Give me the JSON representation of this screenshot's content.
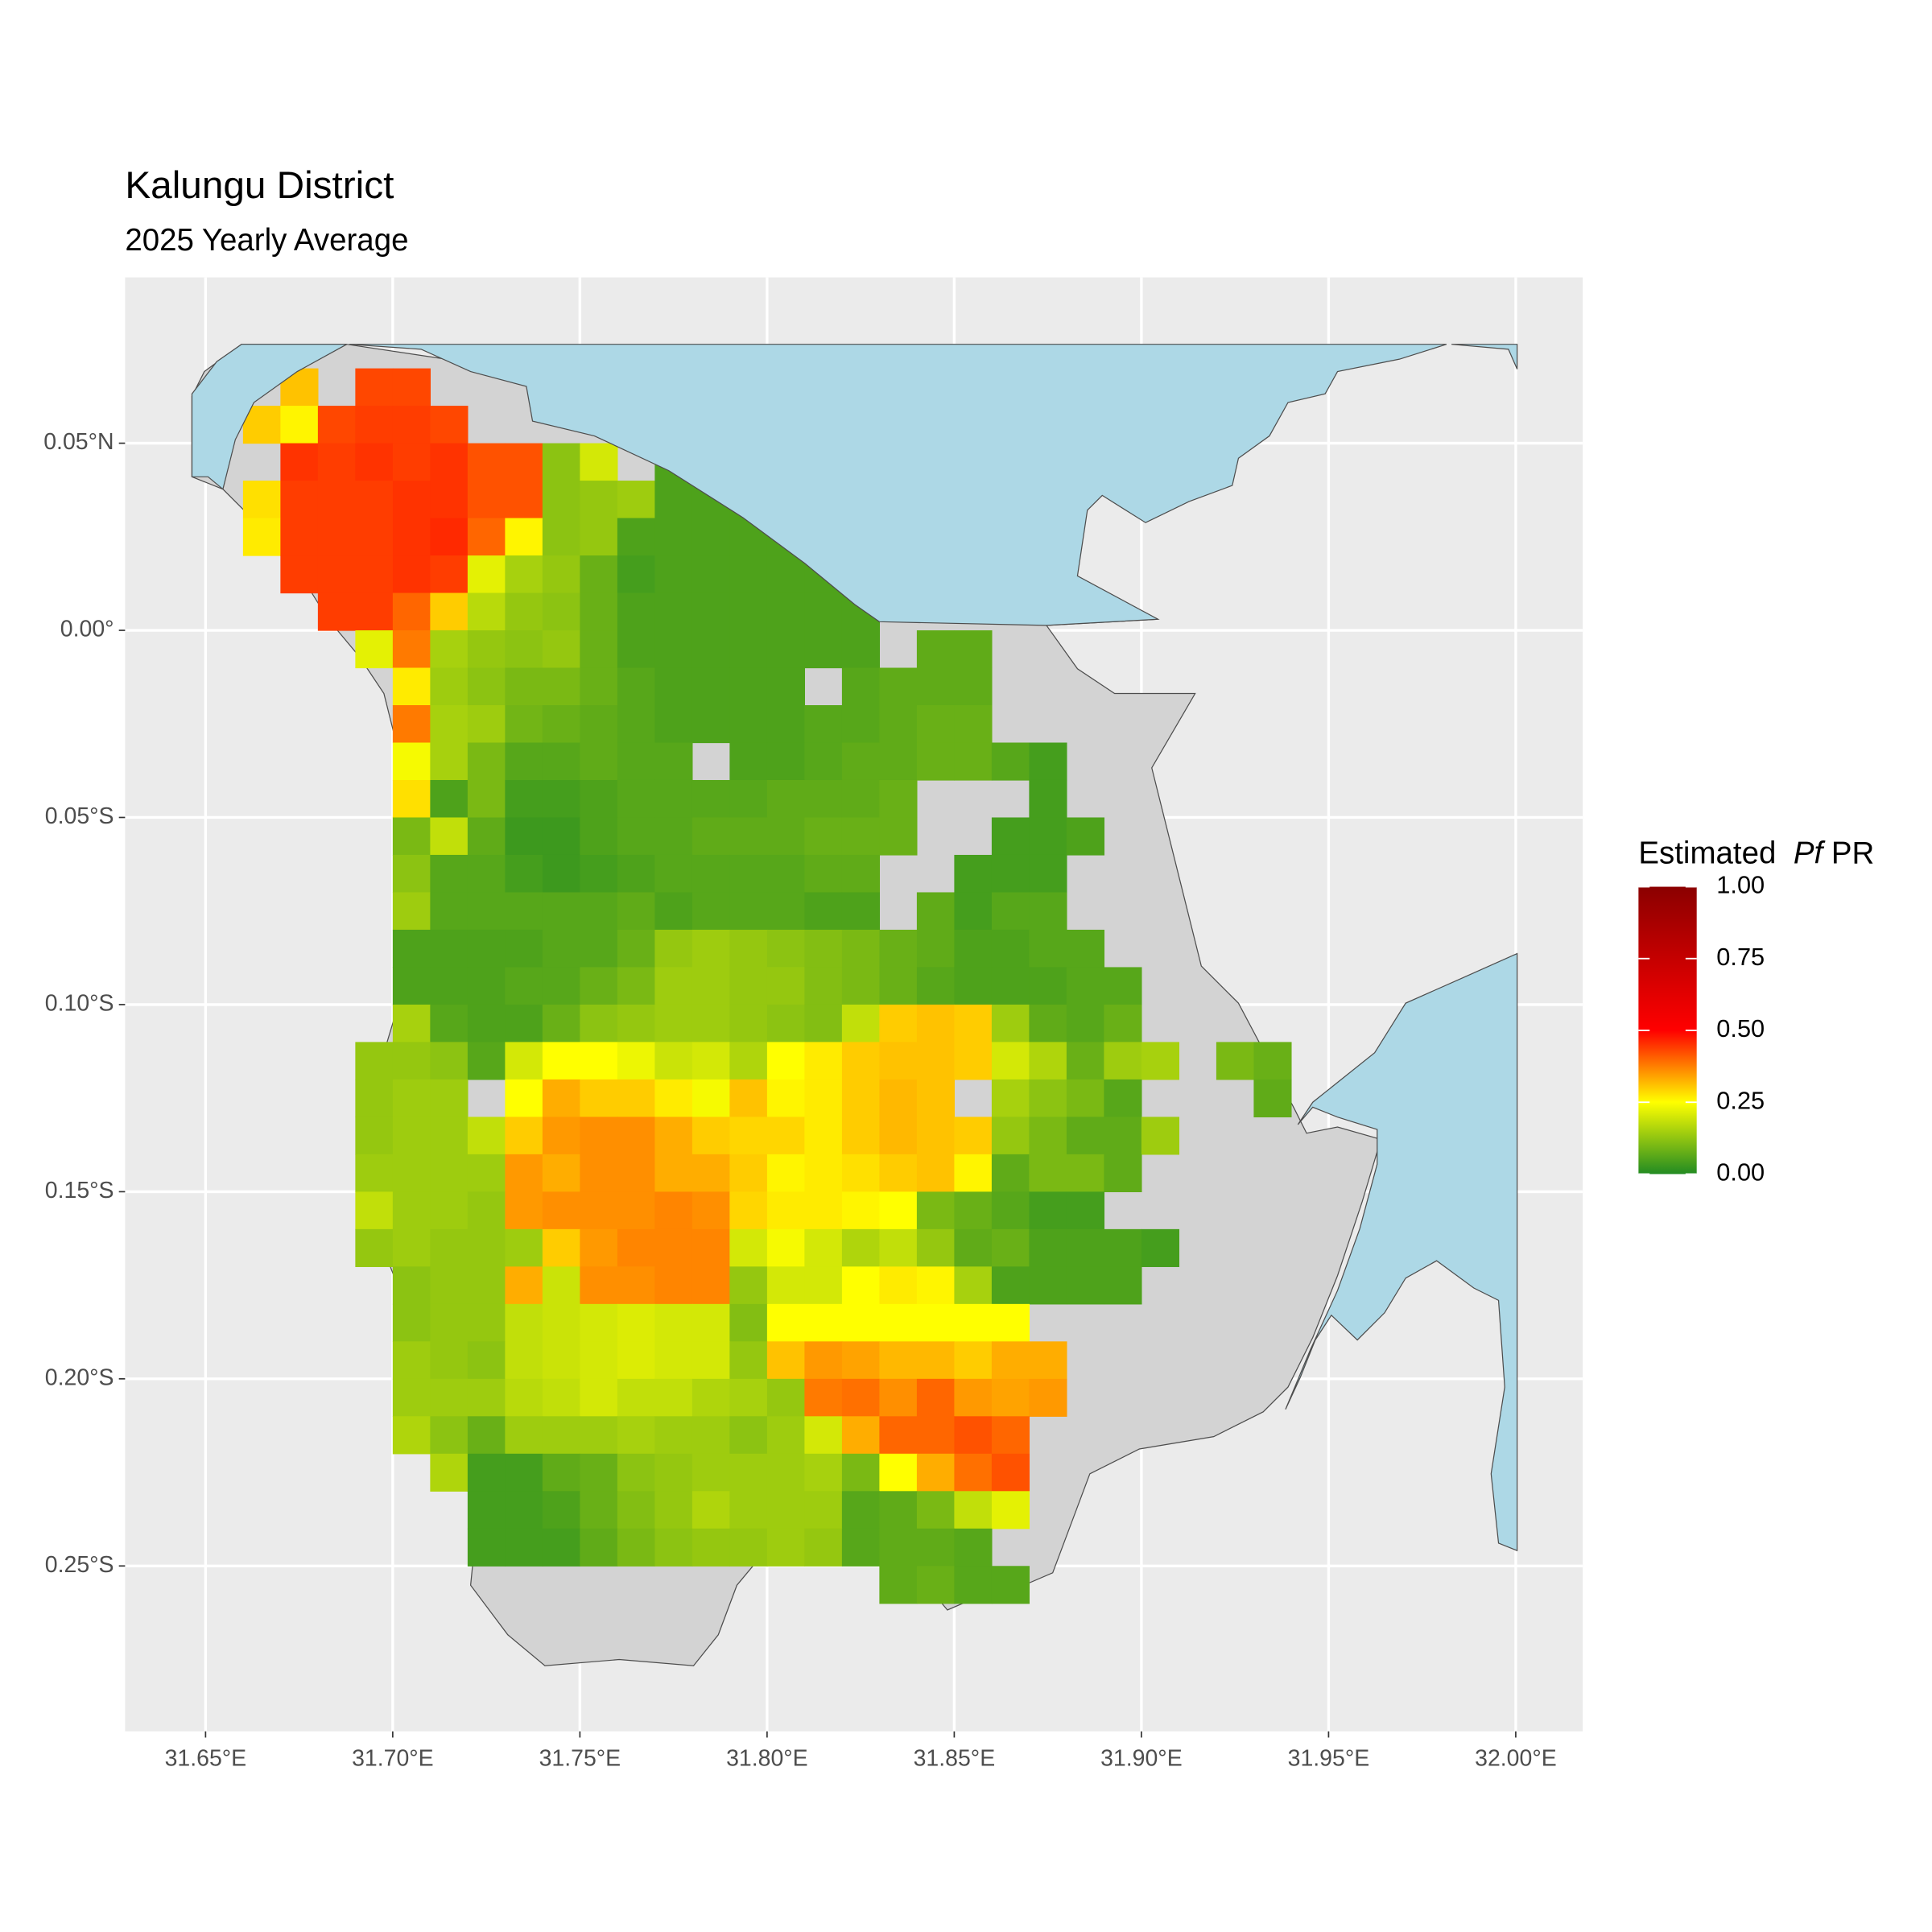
{
  "chart_data": {
    "type": "raster",
    "title": "Kalungu District",
    "subtitle": "2025 Yearly Average",
    "legend_title": [
      "Estimated",
      "Pf",
      "PR"
    ],
    "xlim": [
      31.6285,
      32.0179
    ],
    "ylim": [
      -0.2942,
      0.0943
    ],
    "xticks": [
      {
        "value": 31.65,
        "label": "31.65°E"
      },
      {
        "value": 31.7,
        "label": "31.70°E"
      },
      {
        "value": 31.75,
        "label": "31.75°E"
      },
      {
        "value": 31.8,
        "label": "31.80°E"
      },
      {
        "value": 31.85,
        "label": "31.85°E"
      },
      {
        "value": 31.9,
        "label": "31.90°E"
      },
      {
        "value": 31.95,
        "label": "31.95°E"
      },
      {
        "value": 32.0,
        "label": "32.00°E"
      }
    ],
    "yticks": [
      {
        "value": 0.05,
        "label": "0.05°N"
      },
      {
        "value": 0,
        "label": "0.00°"
      },
      {
        "value": -0.05,
        "label": "0.05°S"
      },
      {
        "value": -0.1,
        "label": "0.10°S"
      },
      {
        "value": -0.15,
        "label": "0.15°S"
      },
      {
        "value": -0.2,
        "label": "0.20°S"
      },
      {
        "value": -0.25,
        "label": "0.25°S"
      }
    ],
    "grid": true,
    "colorbar_lim": [
      0,
      1
    ],
    "colorbar_ticks": [
      {
        "value": 0,
        "label": "0.00"
      },
      {
        "value": 0.25,
        "label": "0.25"
      },
      {
        "value": 0.5,
        "label": "0.50"
      },
      {
        "value": 0.75,
        "label": "0.75"
      },
      {
        "value": 1,
        "label": "1.00"
      }
    ],
    "colorscale": [
      {
        "value": 0,
        "color": "#228b22"
      },
      {
        "value": 0.25,
        "color": "#ffff00"
      },
      {
        "value": 0.5,
        "color": "#ff0000"
      },
      {
        "value": 1,
        "color": "#8b0000"
      }
    ],
    "cell_x": [
      31.665,
      31.675,
      31.685,
      31.695,
      31.705,
      31.715,
      31.725,
      31.735,
      31.745,
      31.755,
      31.765,
      31.775,
      31.785,
      31.795,
      31.805,
      31.815,
      31.825,
      31.835,
      31.845,
      31.855,
      31.865,
      31.875,
      31.885,
      31.895,
      31.905,
      31.915,
      31.925,
      31.935
    ],
    "cell_y": [
      0.065,
      0.055,
      0.045,
      0.035,
      0.025,
      0.015,
      0.005,
      -0.005,
      -0.015,
      -0.025,
      -0.035,
      -0.045,
      -0.055,
      -0.065,
      -0.075,
      -0.085,
      -0.095,
      -0.105,
      -0.115,
      -0.125,
      -0.135,
      -0.145,
      -0.155,
      -0.165,
      -0.175,
      -0.185,
      -0.195,
      -0.205,
      -0.215,
      -0.225,
      -0.235,
      -0.245,
      -0.255
    ],
    "values": [
      [
        null,
        0.31,
        null,
        0.43,
        0.43,
        null,
        null,
        null,
        null,
        null,
        null,
        null,
        null,
        null,
        null,
        null,
        null,
        null,
        null,
        null,
        null,
        null,
        null,
        null,
        null,
        null,
        null,
        null
      ],
      [
        0.3,
        0.26,
        0.43,
        0.44,
        0.44,
        0.43,
        null,
        null,
        null,
        null,
        null,
        null,
        null,
        null,
        null,
        null,
        null,
        null,
        null,
        null,
        null,
        null,
        null,
        null,
        null,
        null,
        null,
        null
      ],
      [
        null,
        0.45,
        0.44,
        0.45,
        0.44,
        0.45,
        0.42,
        0.42,
        0.12,
        0.2,
        null,
        0.05,
        null,
        null,
        null,
        null,
        null,
        null,
        null,
        null,
        null,
        null,
        null,
        null,
        null,
        null,
        null,
        null
      ],
      [
        0.28,
        0.44,
        0.44,
        0.44,
        0.45,
        0.45,
        0.42,
        0.42,
        0.12,
        0.13,
        0.14,
        0.05,
        0.05,
        0.05,
        null,
        null,
        null,
        null,
        null,
        null,
        null,
        null,
        null,
        null,
        null,
        null,
        null,
        null
      ],
      [
        0.27,
        0.44,
        0.44,
        0.44,
        0.45,
        0.46,
        0.4,
        0.26,
        0.12,
        0.13,
        0.05,
        0.05,
        0.05,
        0.05,
        0.05,
        null,
        null,
        null,
        null,
        null,
        null,
        null,
        null,
        null,
        null,
        null,
        null,
        null
      ],
      [
        null,
        0.44,
        0.44,
        0.44,
        0.45,
        0.44,
        0.22,
        0.15,
        0.13,
        0.08,
        0.04,
        0.05,
        0.05,
        0.05,
        0.05,
        0.05,
        null,
        null,
        null,
        null,
        null,
        null,
        null,
        null,
        null,
        null,
        null,
        null
      ],
      [
        null,
        null,
        0.44,
        0.44,
        0.4,
        0.3,
        0.17,
        0.13,
        0.12,
        0.08,
        0.05,
        0.05,
        0.05,
        0.05,
        0.05,
        0.05,
        0.05,
        null,
        null,
        null,
        null,
        null,
        null,
        null,
        null,
        null,
        null,
        null
      ],
      [
        null,
        null,
        null,
        0.22,
        0.38,
        0.15,
        0.13,
        0.12,
        0.13,
        0.08,
        0.05,
        0.05,
        0.05,
        0.05,
        0.05,
        0.05,
        0.05,
        null,
        0.07,
        0.07,
        null,
        null,
        null,
        null,
        null,
        null,
        null,
        null
      ],
      [
        null,
        null,
        null,
        null,
        0.27,
        0.14,
        0.12,
        0.1,
        0.1,
        0.08,
        0.06,
        0.05,
        0.05,
        0.05,
        0.05,
        null,
        0.06,
        0.07,
        0.07,
        0.07,
        null,
        null,
        null,
        null,
        null,
        null,
        null,
        null
      ],
      [
        null,
        null,
        null,
        null,
        0.38,
        0.15,
        0.14,
        0.09,
        0.08,
        0.07,
        0.06,
        0.05,
        0.05,
        0.05,
        0.05,
        0.06,
        0.06,
        0.07,
        0.08,
        0.08,
        null,
        null,
        null,
        null,
        null,
        null,
        null,
        null
      ],
      [
        null,
        null,
        null,
        null,
        0.24,
        0.15,
        0.1,
        0.06,
        0.06,
        0.07,
        0.06,
        0.06,
        null,
        0.05,
        0.05,
        0.06,
        0.07,
        0.07,
        0.08,
        0.08,
        0.06,
        0.04,
        null,
        null,
        null,
        null,
        null,
        null
      ],
      [
        null,
        null,
        null,
        null,
        0.28,
        0.05,
        0.1,
        0.04,
        0.04,
        0.05,
        0.06,
        0.06,
        0.06,
        0.06,
        0.07,
        0.07,
        0.07,
        0.08,
        null,
        null,
        null,
        0.04,
        null,
        null,
        null,
        null,
        null,
        null
      ],
      [
        null,
        null,
        null,
        null,
        0.1,
        0.18,
        0.07,
        0.03,
        0.03,
        0.05,
        0.06,
        0.06,
        0.07,
        0.07,
        0.07,
        0.08,
        0.08,
        0.08,
        null,
        null,
        0.04,
        0.04,
        0.05,
        null,
        null,
        null,
        null,
        null
      ],
      [
        null,
        null,
        null,
        null,
        0.12,
        0.06,
        0.06,
        0.04,
        0.03,
        0.04,
        0.05,
        0.06,
        0.06,
        0.06,
        0.06,
        0.07,
        0.07,
        null,
        null,
        0.04,
        0.04,
        0.04,
        null,
        null,
        null,
        null,
        null,
        null
      ],
      [
        null,
        null,
        null,
        null,
        0.14,
        0.06,
        0.06,
        0.06,
        0.06,
        0.06,
        0.07,
        0.05,
        0.06,
        0.06,
        0.06,
        0.05,
        0.05,
        null,
        0.07,
        0.04,
        0.06,
        0.06,
        null,
        null,
        null,
        null,
        null,
        null
      ],
      [
        null,
        null,
        null,
        null,
        0.05,
        0.05,
        0.05,
        0.05,
        0.06,
        0.06,
        0.08,
        0.13,
        0.14,
        0.13,
        0.12,
        0.11,
        0.1,
        0.08,
        0.07,
        0.05,
        0.05,
        0.06,
        0.06,
        null,
        null,
        null,
        null,
        null
      ],
      [
        null,
        null,
        null,
        null,
        0.05,
        0.05,
        0.05,
        0.06,
        0.06,
        0.08,
        0.1,
        0.14,
        0.14,
        0.13,
        0.13,
        0.11,
        0.1,
        0.08,
        0.06,
        0.05,
        0.05,
        0.05,
        0.06,
        0.06,
        null,
        null,
        null,
        null
      ],
      [
        null,
        null,
        null,
        null,
        0.15,
        0.06,
        0.05,
        0.05,
        0.08,
        0.12,
        0.13,
        0.14,
        0.14,
        0.13,
        0.12,
        0.11,
        0.18,
        0.3,
        0.31,
        0.3,
        0.14,
        0.07,
        0.06,
        0.08,
        null,
        null,
        null,
        null
      ],
      [
        null,
        null,
        null,
        0.13,
        0.13,
        0.12,
        0.06,
        0.2,
        0.25,
        0.25,
        0.23,
        0.19,
        0.2,
        0.16,
        0.25,
        0.27,
        0.3,
        0.31,
        0.31,
        0.3,
        0.2,
        0.16,
        0.08,
        0.14,
        0.15,
        null,
        0.1,
        0.08
      ],
      [
        null,
        null,
        null,
        0.13,
        0.14,
        0.14,
        null,
        0.25,
        0.33,
        0.3,
        0.3,
        0.27,
        0.24,
        0.31,
        0.26,
        0.27,
        0.3,
        0.32,
        0.31,
        null,
        0.15,
        0.12,
        0.1,
        0.06,
        null,
        null,
        null,
        0.07
      ],
      [
        null,
        null,
        null,
        0.13,
        0.14,
        0.14,
        0.18,
        0.3,
        0.35,
        0.36,
        0.36,
        0.33,
        0.3,
        0.29,
        0.29,
        0.27,
        0.3,
        0.32,
        0.31,
        0.3,
        0.13,
        0.1,
        0.07,
        0.07,
        0.14,
        null,
        null,
        null
      ],
      [
        null,
        null,
        null,
        0.14,
        0.14,
        0.14,
        0.14,
        0.35,
        0.33,
        0.36,
        0.36,
        0.33,
        0.33,
        0.3,
        0.26,
        0.27,
        0.28,
        0.3,
        0.31,
        0.26,
        0.07,
        0.1,
        0.1,
        0.07,
        null,
        null,
        null,
        null
      ],
      [
        null,
        null,
        null,
        0.18,
        0.14,
        0.14,
        0.13,
        0.35,
        0.36,
        0.36,
        0.36,
        0.37,
        0.36,
        0.29,
        0.27,
        0.27,
        0.26,
        0.25,
        0.1,
        0.08,
        0.06,
        0.04,
        0.04,
        null,
        null,
        null,
        null,
        null
      ],
      [
        null,
        null,
        null,
        0.13,
        0.14,
        0.13,
        0.13,
        0.14,
        0.3,
        0.35,
        0.37,
        0.37,
        0.37,
        0.2,
        0.24,
        0.2,
        0.16,
        0.18,
        0.13,
        0.07,
        0.08,
        0.05,
        0.05,
        0.05,
        0.04,
        null,
        null,
        null
      ],
      [
        null,
        null,
        null,
        null,
        0.12,
        0.13,
        0.13,
        0.33,
        0.19,
        0.36,
        0.36,
        0.37,
        0.37,
        0.13,
        0.2,
        0.2,
        0.25,
        0.27,
        0.26,
        0.15,
        0.05,
        0.05,
        0.05,
        0.05,
        null,
        null,
        null,
        null
      ],
      [
        null,
        null,
        null,
        null,
        0.12,
        0.13,
        0.13,
        0.18,
        0.19,
        0.2,
        0.21,
        0.2,
        0.2,
        0.11,
        0.25,
        0.25,
        0.25,
        0.25,
        0.25,
        0.25,
        0.25,
        null,
        null,
        null,
        null,
        null,
        null,
        null
      ],
      [
        null,
        null,
        null,
        null,
        0.14,
        0.13,
        0.12,
        0.18,
        0.19,
        0.2,
        0.21,
        0.2,
        0.2,
        0.13,
        0.31,
        0.35,
        0.34,
        0.32,
        0.32,
        0.3,
        0.33,
        0.33,
        null,
        null,
        null,
        null,
        null,
        null
      ],
      [
        null,
        null,
        null,
        null,
        0.14,
        0.14,
        0.14,
        0.17,
        0.18,
        0.2,
        0.18,
        0.18,
        0.16,
        0.15,
        0.13,
        0.38,
        0.39,
        0.36,
        0.4,
        0.35,
        0.34,
        0.35,
        null,
        null,
        null,
        null,
        null,
        null
      ],
      [
        null,
        null,
        null,
        null,
        0.16,
        0.12,
        0.08,
        0.14,
        0.14,
        0.14,
        0.15,
        0.14,
        0.14,
        0.12,
        0.14,
        0.2,
        0.33,
        0.4,
        0.4,
        0.42,
        0.4,
        null,
        null,
        null,
        null,
        null,
        null,
        null
      ],
      [
        null,
        null,
        null,
        null,
        null,
        0.16,
        0.04,
        0.04,
        0.07,
        0.08,
        0.12,
        0.13,
        0.14,
        0.14,
        0.14,
        0.15,
        0.1,
        0.25,
        0.33,
        0.39,
        0.42,
        null,
        null,
        null,
        null,
        null,
        null,
        null
      ],
      [
        null,
        null,
        null,
        null,
        null,
        null,
        0.04,
        0.04,
        0.05,
        0.08,
        0.11,
        0.13,
        0.16,
        0.14,
        0.14,
        0.14,
        0.06,
        0.07,
        0.1,
        0.18,
        0.22,
        null,
        null,
        null,
        null,
        null,
        null,
        null
      ],
      [
        null,
        null,
        null,
        null,
        null,
        null,
        0.04,
        0.04,
        0.04,
        0.07,
        0.1,
        0.12,
        0.13,
        0.13,
        0.14,
        0.13,
        0.06,
        0.07,
        0.07,
        0.06,
        null,
        null,
        null,
        null,
        null,
        null,
        null,
        null
      ],
      [
        null,
        null,
        null,
        null,
        null,
        null,
        null,
        null,
        null,
        null,
        null,
        null,
        null,
        null,
        null,
        null,
        null,
        0.07,
        0.08,
        0.06,
        0.06,
        null,
        null,
        null,
        null,
        null,
        null,
        null
      ]
    ]
  }
}
